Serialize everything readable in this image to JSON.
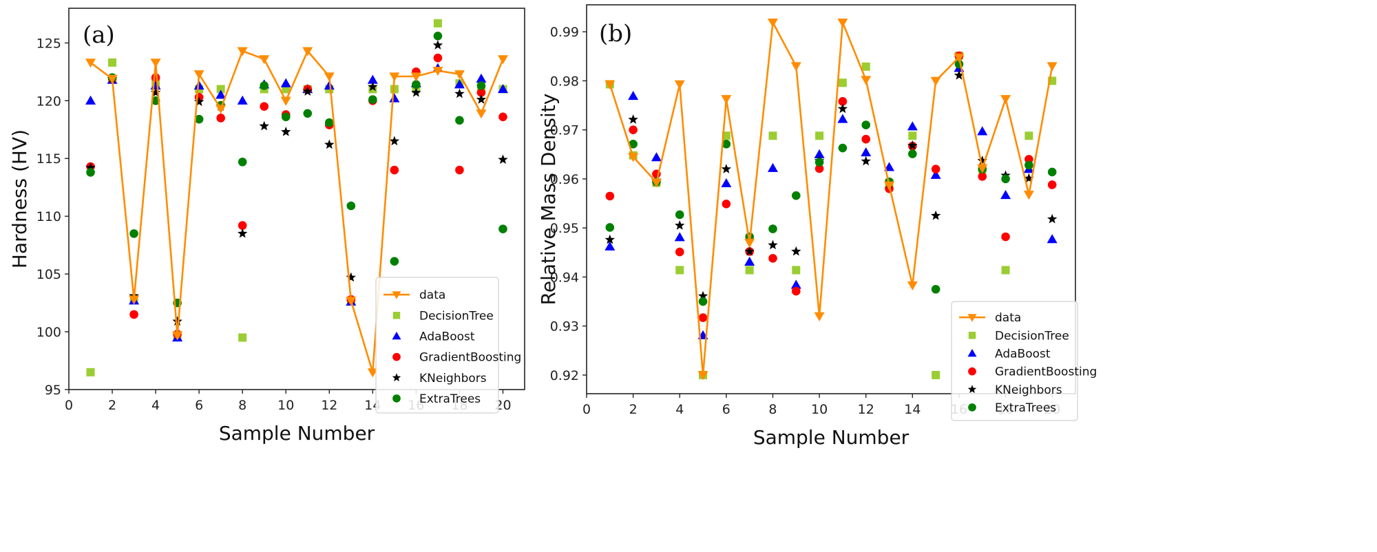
{
  "chart_data": [
    {
      "type": "scatter",
      "panel_label": "(a)",
      "title": "",
      "xlabel": "Sample Number",
      "ylabel": "Hardness (HV)",
      "xlim": [
        0,
        21
      ],
      "ylim": [
        95,
        128
      ],
      "xticks": [
        0,
        2,
        4,
        6,
        8,
        10,
        12,
        14,
        16,
        18,
        20
      ],
      "yticks": [
        95,
        100,
        105,
        110,
        115,
        120,
        125
      ],
      "grid": false,
      "legend_position": "bottom-right",
      "x": [
        1,
        2,
        3,
        4,
        5,
        6,
        7,
        8,
        9,
        10,
        11,
        12,
        13,
        14,
        15,
        16,
        17,
        18,
        19,
        20
      ],
      "series": [
        {
          "name": "data",
          "marker": "triangle-down",
          "line": true,
          "color": "#ff8c00",
          "values": [
            123.3,
            121.9,
            102.8,
            123.3,
            99.7,
            122.3,
            119.3,
            124.3,
            123.6,
            120.0,
            124.3,
            122.1,
            102.7,
            96.5,
            122.1,
            122.1,
            122.6,
            122.3,
            118.9,
            123.6
          ]
        },
        {
          "name": "DecisionTree",
          "marker": "square",
          "line": false,
          "color": "#9acd32",
          "values": [
            96.5,
            123.3,
            102.8,
            121.5,
            99.7,
            121.0,
            121.0,
            99.5,
            121.0,
            121.0,
            121.0,
            121.0,
            102.7,
            121.0,
            121.0,
            121.0,
            126.7,
            121.5,
            121.0,
            121.0
          ]
        },
        {
          "name": "AdaBoost",
          "marker": "triangle-up",
          "line": false,
          "color": "#0000ff",
          "values": [
            120.0,
            121.8,
            102.7,
            121.3,
            99.5,
            121.3,
            120.5,
            120.0,
            121.4,
            121.5,
            121.0,
            121.3,
            102.6,
            121.8,
            120.2,
            121.5,
            122.8,
            121.4,
            121.9,
            121.0
          ]
        },
        {
          "name": "GradientBoosting",
          "marker": "circle",
          "line": false,
          "color": "#ff0000",
          "values": [
            114.3,
            121.9,
            101.5,
            122.0,
            99.8,
            120.3,
            118.5,
            109.2,
            119.5,
            118.8,
            121.0,
            117.9,
            102.8,
            120.0,
            114.0,
            122.5,
            123.7,
            114.0,
            120.7,
            118.6
          ]
        },
        {
          "name": "KNeighbors",
          "marker": "star",
          "line": false,
          "color": "#000000",
          "values": [
            114.2,
            121.9,
            103.1,
            120.7,
            100.9,
            119.9,
            119.5,
            108.5,
            117.8,
            117.3,
            120.8,
            116.2,
            104.7,
            121.2,
            116.5,
            120.7,
            124.8,
            120.6,
            120.1,
            114.9
          ]
        },
        {
          "name": "ExtraTrees",
          "marker": "circle",
          "line": false,
          "color": "#008000",
          "values": [
            113.8,
            122.0,
            108.5,
            120.0,
            102.5,
            118.4,
            119.6,
            114.7,
            121.3,
            118.6,
            118.9,
            118.1,
            110.9,
            120.1,
            106.1,
            121.4,
            125.6,
            118.3,
            121.3,
            108.9
          ]
        }
      ]
    },
    {
      "type": "scatter",
      "panel_label": "(b)",
      "title": "",
      "xlabel": "Sample Number",
      "ylabel": "Relative Mass Density",
      "xlim": [
        0,
        21
      ],
      "ylim": [
        0.9162,
        0.9955
      ],
      "xticks": [
        0,
        2,
        4,
        6,
        8,
        10,
        12,
        14,
        16,
        18,
        20
      ],
      "yticks": [
        0.92,
        0.93,
        0.94,
        0.95,
        0.96,
        0.97,
        0.98,
        0.99
      ],
      "grid": false,
      "legend_position": "bottom-right",
      "x": [
        1,
        2,
        3,
        4,
        5,
        6,
        7,
        8,
        9,
        10,
        11,
        12,
        13,
        14,
        15,
        16,
        17,
        18,
        19,
        20
      ],
      "series": [
        {
          "name": "data",
          "marker": "triangle-down",
          "line": true,
          "color": "#ff8c00",
          "values": [
            0.9793,
            0.9645,
            0.9593,
            0.9793,
            0.92,
            0.9763,
            0.947,
            0.9919,
            0.983,
            0.932,
            0.9919,
            0.9802,
            0.9587,
            0.9383,
            0.98,
            0.9848,
            0.9622,
            0.9763,
            0.9568,
            0.983
          ]
        },
        {
          "name": "DecisionTree",
          "marker": "square",
          "line": false,
          "color": "#9acd32",
          "values": [
            0.9793,
            0.9648,
            0.9592,
            0.9414,
            0.92,
            0.9688,
            0.9414,
            0.9688,
            0.9414,
            0.9688,
            0.9796,
            0.9829,
            0.9592,
            0.9688,
            0.92,
            0.9851,
            0.962,
            0.9414,
            0.9688,
            0.98
          ]
        },
        {
          "name": "AdaBoost",
          "marker": "triangle-up",
          "line": false,
          "color": "#0000ff",
          "values": [
            0.9462,
            0.9769,
            0.9644,
            0.9481,
            0.9281,
            0.9591,
            0.9431,
            0.9622,
            0.9384,
            0.965,
            0.9722,
            0.9654,
            0.9624,
            0.9707,
            0.9608,
            0.9826,
            0.9697,
            0.9567,
            0.962,
            0.9477
          ]
        },
        {
          "name": "GradientBoosting",
          "marker": "circle",
          "line": false,
          "color": "#ff0000",
          "values": [
            0.9565,
            0.97,
            0.961,
            0.9451,
            0.9317,
            0.9549,
            0.9452,
            0.9438,
            0.9371,
            0.9621,
            0.9758,
            0.9681,
            0.958,
            0.9667,
            0.962,
            0.9851,
            0.9605,
            0.9482,
            0.964,
            0.9588
          ]
        },
        {
          "name": "KNeighbors",
          "marker": "star",
          "line": false,
          "color": "#000000",
          "values": [
            0.9476,
            0.9721,
            0.9595,
            0.9505,
            0.9361,
            0.962,
            0.9452,
            0.9465,
            0.9452,
            0.9637,
            0.9743,
            0.9636,
            0.959,
            0.9668,
            0.9525,
            0.9811,
            0.9637,
            0.9607,
            0.9601,
            0.9518
          ]
        },
        {
          "name": "ExtraTrees",
          "marker": "circle",
          "line": false,
          "color": "#008000",
          "values": [
            0.9501,
            0.9671,
            0.9594,
            0.9527,
            0.935,
            0.9671,
            0.9482,
            0.9498,
            0.9566,
            0.9634,
            0.9663,
            0.971,
            0.9594,
            0.9651,
            0.9375,
            0.9834,
            0.962,
            0.96,
            0.9628,
            0.9614
          ]
        }
      ]
    }
  ]
}
